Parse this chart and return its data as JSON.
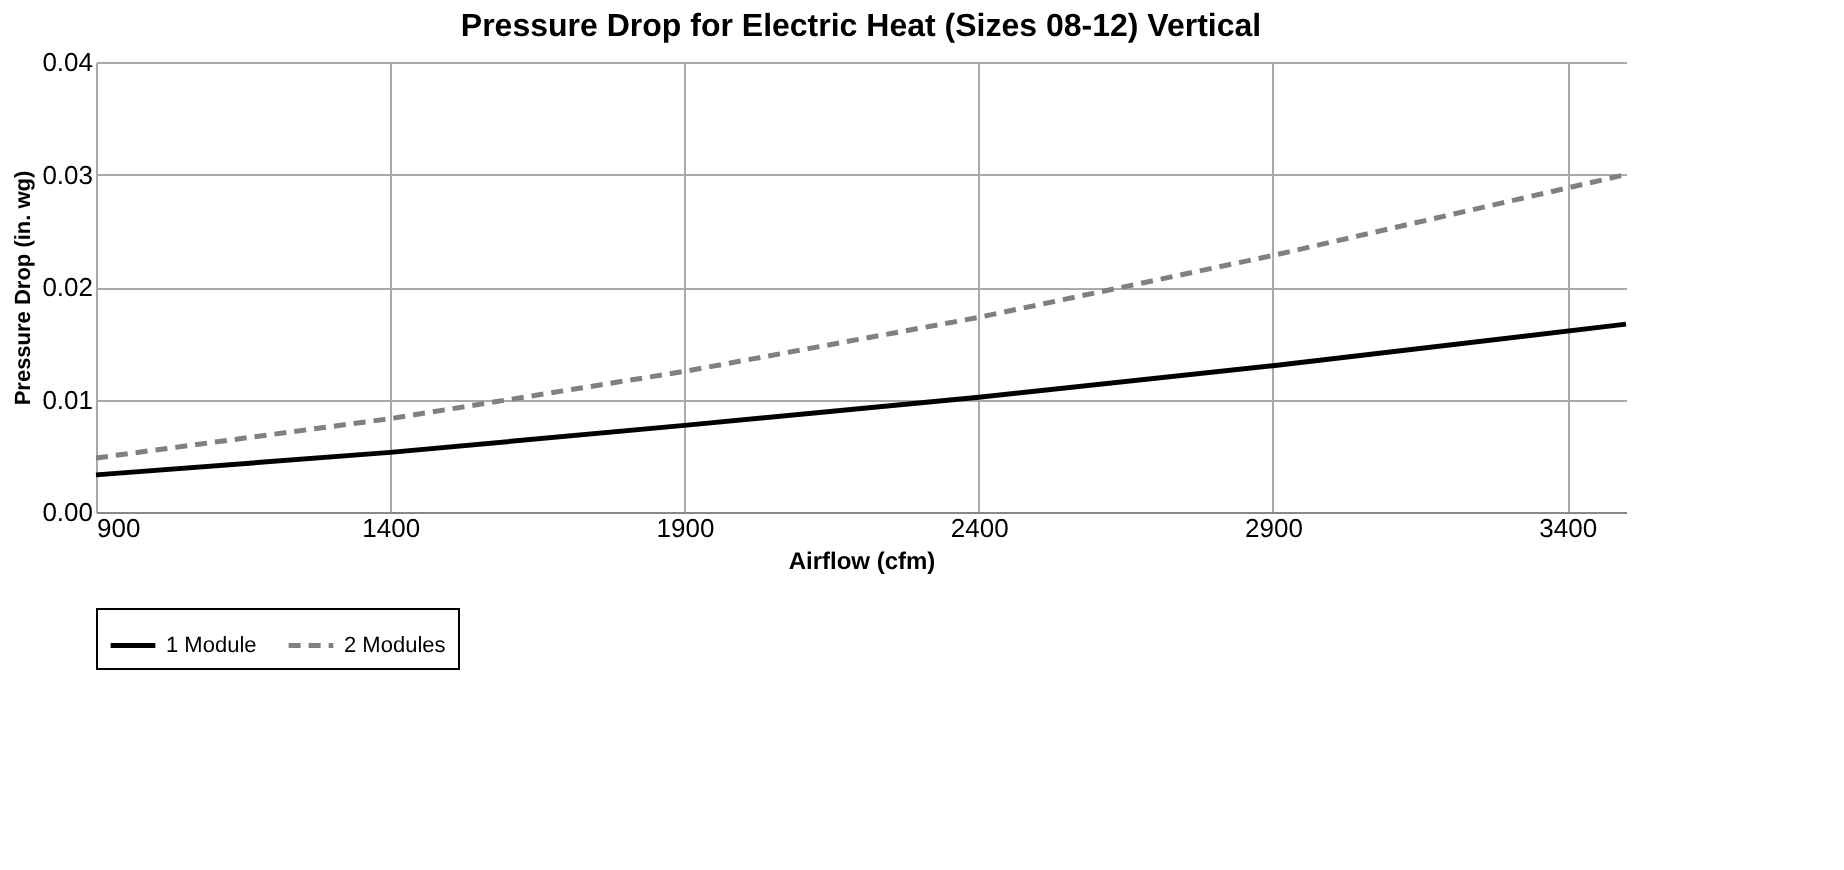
{
  "chart_data": {
    "type": "line",
    "title": "Pressure Drop for Electric Heat (Sizes 08-12) Vertical",
    "xlabel": "Airflow (cfm)",
    "ylabel": "Pressure Drop (in. wg)",
    "x": [
      900,
      1400,
      1900,
      2400,
      2900,
      3500
    ],
    "series": [
      {
        "name": "1 Module",
        "color": "#000000",
        "line_style": "solid",
        "values": [
          0.0033,
          0.0053,
          0.0077,
          0.0102,
          0.013,
          0.0167
        ]
      },
      {
        "name": "2 Modules",
        "color": "#808080",
        "line_style": "dashed",
        "values": [
          0.0048,
          0.0083,
          0.0125,
          0.0173,
          0.0228,
          0.03
        ]
      }
    ],
    "xlim": [
      900,
      3500
    ],
    "xticks": [
      900,
      1400,
      1900,
      2400,
      2900,
      3400
    ],
    "ylim": [
      0,
      0.04
    ],
    "yticks": [
      {
        "value": 0,
        "label": "0.00"
      },
      {
        "value": 0.01,
        "label": "0.01"
      },
      {
        "value": 0.02,
        "label": "0.02"
      },
      {
        "value": 0.03,
        "label": "0.03"
      },
      {
        "value": 0.04,
        "label": "0.04"
      }
    ],
    "grid": true,
    "legend": "bottom",
    "marker": "none"
  }
}
